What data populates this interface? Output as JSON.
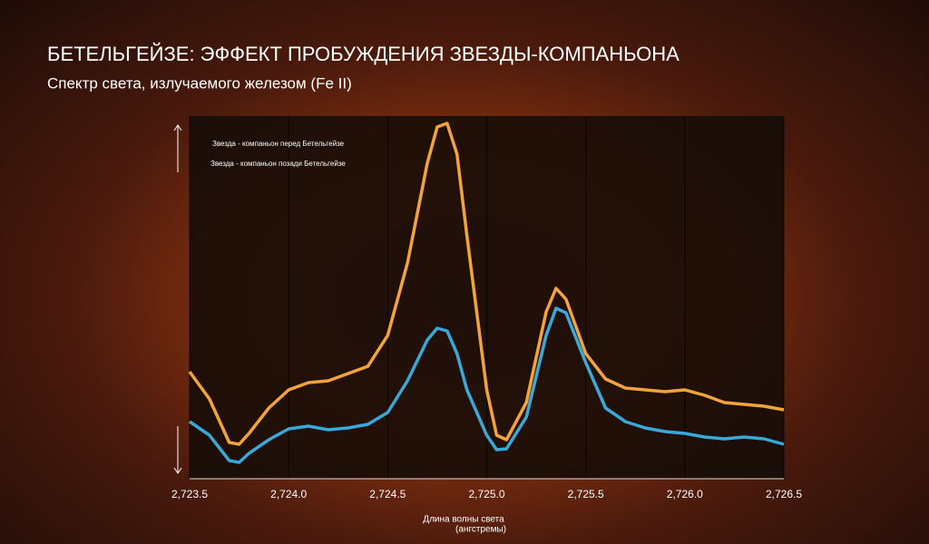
{
  "chart_data": {
    "type": "line",
    "title": "БЕТЕЛЬГЕЙЗЕ: ЭФФЕКТ ПРОБУЖДЕНИЯ ЗВЕЗДЫ-КОМПАНЬОНА",
    "subtitle": "Спектр света, излучаемого железом (Fe II)",
    "xlabel": "Длина волны света",
    "xlabel_unit": "(ангстремы)",
    "x": [
      2723.5,
      2723.6,
      2723.7,
      2723.75,
      2723.8,
      2723.9,
      2724.0,
      2724.1,
      2724.2,
      2724.3,
      2724.4,
      2724.5,
      2724.6,
      2724.7,
      2724.75,
      2724.8,
      2724.85,
      2724.9,
      2725.0,
      2725.05,
      2725.1,
      2725.2,
      2725.3,
      2725.35,
      2725.4,
      2725.5,
      2725.6,
      2725.7,
      2725.8,
      2725.9,
      2726.0,
      2726.1,
      2726.2,
      2726.3,
      2726.4,
      2726.5
    ],
    "series": [
      {
        "name": "Звезда - компаньон перед Бетельгейзе",
        "color": "#f2a33a",
        "values": [
          29.5,
          22,
          10,
          9.5,
          12.5,
          19.5,
          24.5,
          26.5,
          27,
          29,
          31,
          39.5,
          59.5,
          87,
          97,
          98,
          89.5,
          67,
          24.5,
          12,
          10.75,
          21,
          46,
          52.5,
          49.5,
          34.5,
          27.5,
          25,
          24.5,
          24,
          24.5,
          23,
          21,
          20.5,
          20,
          19
        ]
      },
      {
        "name": "Звезда - компаньон позади Бетельгейзе",
        "color": "#3aa8d8",
        "values": [
          15.75,
          12,
          5,
          4.5,
          7,
          10.75,
          13.75,
          14.5,
          13.5,
          14,
          15,
          18.25,
          27,
          38.25,
          41.5,
          40.75,
          34.5,
          24.5,
          12,
          8,
          8.25,
          17,
          39.5,
          47,
          45.75,
          32,
          19.5,
          15.75,
          14,
          13,
          12.5,
          11.5,
          11,
          11.5,
          11,
          9.5
        ]
      }
    ],
    "xlim": [
      2723.5,
      2726.5
    ],
    "xticks": [
      {
        "value": 2723.5,
        "label": "2,723.5"
      },
      {
        "value": 2724.0,
        "label": "2,724.0"
      },
      {
        "value": 2724.5,
        "label": "2,724.5"
      },
      {
        "value": 2725.0,
        "label": "2,725.0"
      },
      {
        "value": 2725.5,
        "label": "2,725.5"
      },
      {
        "value": 2726.0,
        "label": "2,726.0"
      },
      {
        "value": 2726.5,
        "label": "2,726.5"
      }
    ],
    "ylim": [
      0,
      100
    ],
    "grid": true
  }
}
